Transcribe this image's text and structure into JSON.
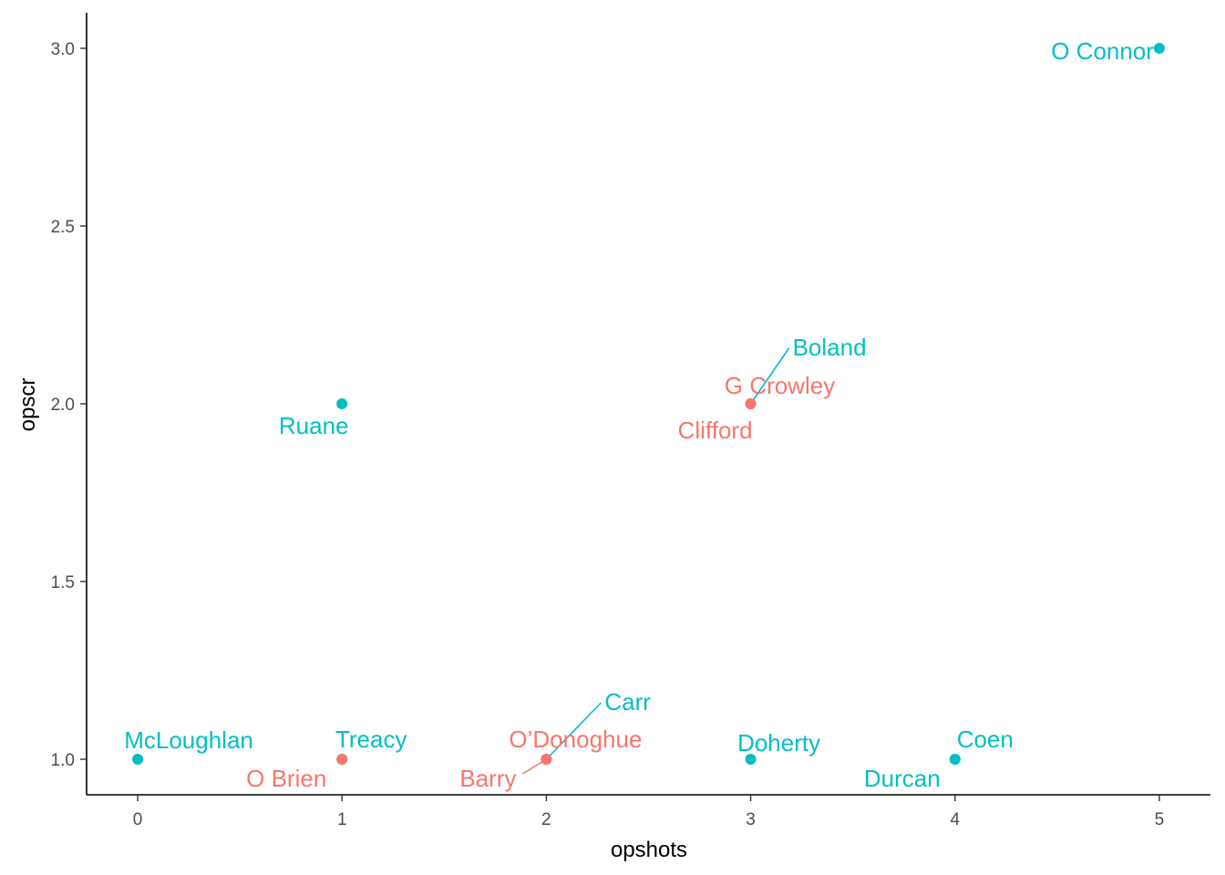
{
  "chart_data": {
    "type": "scatter",
    "title": "",
    "xlabel": "opshots",
    "ylabel": "opscr",
    "xlim": [
      -0.25,
      5.25
    ],
    "ylim": [
      0.9,
      3.1
    ],
    "x_ticks": [
      0,
      1,
      2,
      3,
      4,
      5
    ],
    "x_tick_labels": [
      "0",
      "1",
      "2",
      "3",
      "4",
      "5"
    ],
    "y_ticks": [
      1.0,
      1.5,
      2.0,
      2.5,
      3.0
    ],
    "y_tick_labels": [
      "1.0",
      "1.5",
      "2.0",
      "2.5",
      "3.0"
    ],
    "grid": false,
    "legend": "none",
    "group_colors": {
      "a": "#F8766D",
      "b": "#00BFC4"
    },
    "points": [
      {
        "label": "O Connor",
        "x": 5,
        "y": 3,
        "group": "b"
      },
      {
        "label": "Boland",
        "x": 3,
        "y": 2,
        "group": "b"
      },
      {
        "label": "G Crowley",
        "x": 3,
        "y": 2,
        "group": "a"
      },
      {
        "label": "Clifford",
        "x": 3,
        "y": 2,
        "group": "a"
      },
      {
        "label": "Ruane",
        "x": 1,
        "y": 2,
        "group": "b"
      },
      {
        "label": "McLoughlan",
        "x": 0,
        "y": 1,
        "group": "b"
      },
      {
        "label": "Treacy",
        "x": 1,
        "y": 1,
        "group": "b"
      },
      {
        "label": "O Brien",
        "x": 1,
        "y": 1,
        "group": "a"
      },
      {
        "label": "Carr",
        "x": 2,
        "y": 1,
        "group": "b"
      },
      {
        "label": "O’Donoghue",
        "x": 2,
        "y": 1,
        "group": "a"
      },
      {
        "label": "Barry",
        "x": 2,
        "y": 1,
        "group": "a"
      },
      {
        "label": "Doherty",
        "x": 3,
        "y": 1,
        "group": "b"
      },
      {
        "label": "Coen",
        "x": 4,
        "y": 1,
        "group": "b"
      },
      {
        "label": "Durcan",
        "x": 4,
        "y": 1,
        "group": "b"
      }
    ]
  }
}
